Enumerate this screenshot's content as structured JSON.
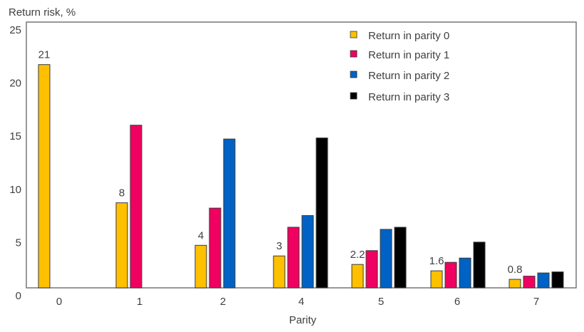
{
  "chart_data": {
    "type": "bar",
    "title": "",
    "xlabel": "Parity",
    "ylabel": "Return risk, %",
    "ylim": [
      0,
      25
    ],
    "yticks": [
      "0",
      "5",
      "10",
      "15",
      "20",
      "25"
    ],
    "grid": false,
    "legend_position": "top-right",
    "categories": [
      "0",
      "1",
      "2",
      "4",
      "5",
      "6",
      "7"
    ],
    "series": [
      {
        "name": "Return in parity 0",
        "color": "#FFC000",
        "values": [
          21.0,
          8.0,
          4.0,
          3.0,
          2.2,
          1.6,
          0.8
        ]
      },
      {
        "name": "Return in parity 1",
        "color": "#F00060",
        "values": [
          null,
          15.3,
          7.5,
          5.7,
          3.5,
          2.4,
          1.1
        ]
      },
      {
        "name": "Return in parity 2",
        "color": "#0062C4",
        "values": [
          null,
          null,
          14.0,
          6.8,
          5.5,
          2.8,
          1.4
        ]
      },
      {
        "name": "Return in parity 3",
        "color": "#000000",
        "values": [
          null,
          null,
          null,
          14.1,
          5.7,
          4.3,
          1.5
        ]
      }
    ],
    "data_labels": [
      "21",
      "8",
      "4",
      "3",
      "2.2",
      "1.6",
      "0.8"
    ]
  }
}
